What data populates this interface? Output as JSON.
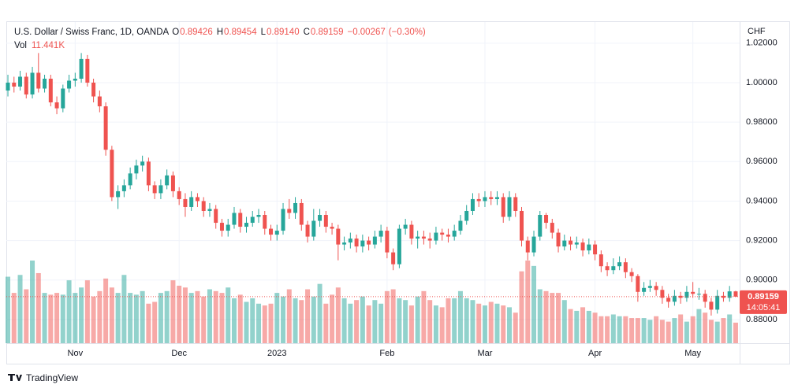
{
  "chart_data": {
    "type": "candlestick",
    "title": "U.S. Dollar / Swiss Franc, 1D, OANDA",
    "legend_letters": [
      "O",
      "H",
      "L",
      "C"
    ],
    "legend_values": [
      {
        "value": 0.89426,
        "label": "0.89426"
      },
      {
        "value": 0.89454,
        "label": "0.89454"
      },
      {
        "value": 0.8914,
        "label": "0.89140"
      },
      {
        "value": 0.89159,
        "label": "0.89159"
      }
    ],
    "change": {
      "value": -0.00267,
      "label": "−0.00267"
    },
    "change_pct": {
      "value": -0.3,
      "label": "(−0.30%)"
    },
    "volume_title": "Vol",
    "volume_last": {
      "value": 11441,
      "label": "11.441K"
    },
    "currency": "CHF",
    "countdown": "14:05:41",
    "footer": "TradingView",
    "up_color": "#26a69a",
    "down_color": "#ef5350",
    "grid": true,
    "xlim": [
      -0.26,
      119.65
    ],
    "xticks": [
      {
        "value": 11,
        "label": "Nov"
      },
      {
        "value": 28,
        "label": "Dec"
      },
      {
        "value": 44,
        "label": "2023"
      },
      {
        "value": 62,
        "label": "Feb"
      },
      {
        "value": 78,
        "label": "Mar"
      },
      {
        "value": 96,
        "label": "Apr"
      },
      {
        "value": 112,
        "label": "May"
      }
    ],
    "ylim": [
      0.868,
      1.0307
    ],
    "yticks": [
      {
        "value": 0.88,
        "label": "0.88000"
      },
      {
        "value": 0.9,
        "label": "0.90000"
      },
      {
        "value": 0.92,
        "label": "0.92000"
      },
      {
        "value": 0.94,
        "label": "0.94000"
      },
      {
        "value": 0.96,
        "label": "0.96000"
      },
      {
        "value": 0.98,
        "label": "0.98000"
      },
      {
        "value": 1.0,
        "label": "1.00000"
      },
      {
        "value": 1.02,
        "label": "1.02000"
      }
    ],
    "open": [
      0.996,
      1.0,
      0.998,
      1.003,
      0.994,
      1.005,
      0.997,
      1.002,
      0.99,
      0.987,
      0.997,
      1.001,
      1.002,
      1.012,
      1.0,
      0.993,
      0.988,
      0.966,
      0.942,
      0.945,
      0.948,
      0.954,
      0.958,
      0.96,
      0.948,
      0.944,
      0.948,
      0.953,
      0.945,
      0.941,
      0.937,
      0.942,
      0.94,
      0.935,
      0.936,
      0.929,
      0.925,
      0.928,
      0.934,
      0.927,
      0.929,
      0.932,
      0.933,
      0.926,
      0.923,
      0.925,
      0.936,
      0.934,
      0.939,
      0.928,
      0.922,
      0.93,
      0.933,
      0.927,
      0.926,
      0.918,
      0.919,
      0.921,
      0.917,
      0.92,
      0.918,
      0.922,
      0.925,
      0.914,
      0.908,
      0.926,
      0.928,
      0.921,
      0.922,
      0.921,
      0.92,
      0.924,
      0.923,
      0.922,
      0.925,
      0.93,
      0.935,
      0.941,
      0.94,
      0.942,
      0.941,
      0.942,
      0.932,
      0.942,
      0.935,
      0.92,
      0.914,
      0.922,
      0.933,
      0.929,
      0.924,
      0.917,
      0.92,
      0.918,
      0.919,
      0.915,
      0.918,
      0.913,
      0.907,
      0.905,
      0.907,
      0.909,
      0.904,
      0.902,
      0.894,
      0.896,
      0.897,
      0.895,
      0.891,
      0.889,
      0.892,
      0.891,
      0.894,
      0.893,
      0.893,
      0.889,
      0.885,
      0.892,
      0.891,
      0.89426
    ],
    "high": [
      1.004,
      1.003,
      1.006,
      1.005,
      1.008,
      1.015,
      1.004,
      1.004,
      0.993,
      0.999,
      1.004,
      1.005,
      1.015,
      1.014,
      1.002,
      0.996,
      0.99,
      0.968,
      0.948,
      0.951,
      0.957,
      0.961,
      0.963,
      0.962,
      0.95,
      0.951,
      0.956,
      0.955,
      0.947,
      0.944,
      0.945,
      0.944,
      0.942,
      0.939,
      0.938,
      0.931,
      0.931,
      0.937,
      0.936,
      0.932,
      0.935,
      0.936,
      0.935,
      0.928,
      0.928,
      0.939,
      0.941,
      0.942,
      0.941,
      0.93,
      0.936,
      0.936,
      0.935,
      0.929,
      0.928,
      0.922,
      0.924,
      0.923,
      0.923,
      0.922,
      0.925,
      0.928,
      0.927,
      0.916,
      0.928,
      0.931,
      0.93,
      0.925,
      0.925,
      0.924,
      0.927,
      0.926,
      0.926,
      0.928,
      0.933,
      0.938,
      0.944,
      0.944,
      0.945,
      0.945,
      0.945,
      0.944,
      0.945,
      0.944,
      0.937,
      0.922,
      0.925,
      0.935,
      0.934,
      0.931,
      0.926,
      0.923,
      0.922,
      0.922,
      0.921,
      0.921,
      0.92,
      0.915,
      0.909,
      0.911,
      0.912,
      0.911,
      0.906,
      0.903,
      0.899,
      0.9,
      0.899,
      0.897,
      0.893,
      0.895,
      0.894,
      0.897,
      0.899,
      0.896,
      0.895,
      0.891,
      0.895,
      0.894,
      0.897,
      0.89454
    ],
    "low": [
      0.993,
      0.995,
      0.996,
      0.992,
      0.992,
      0.995,
      0.995,
      0.988,
      0.984,
      0.985,
      0.995,
      0.998,
      1.0,
      0.998,
      0.99,
      0.985,
      0.963,
      0.94,
      0.936,
      0.942,
      0.946,
      0.951,
      0.955,
      0.945,
      0.941,
      0.941,
      0.946,
      0.942,
      0.938,
      0.932,
      0.935,
      0.937,
      0.932,
      0.932,
      0.926,
      0.922,
      0.922,
      0.926,
      0.924,
      0.924,
      0.927,
      0.929,
      0.923,
      0.92,
      0.92,
      0.923,
      0.931,
      0.931,
      0.925,
      0.919,
      0.92,
      0.927,
      0.924,
      0.923,
      0.91,
      0.915,
      0.916,
      0.914,
      0.914,
      0.915,
      0.916,
      0.919,
      0.911,
      0.905,
      0.906,
      0.923,
      0.918,
      0.916,
      0.918,
      0.916,
      0.918,
      0.92,
      0.919,
      0.92,
      0.923,
      0.928,
      0.933,
      0.937,
      0.937,
      0.938,
      0.938,
      0.929,
      0.93,
      0.932,
      0.917,
      0.91,
      0.912,
      0.92,
      0.926,
      0.921,
      0.914,
      0.915,
      0.915,
      0.916,
      0.912,
      0.913,
      0.91,
      0.904,
      0.902,
      0.903,
      0.905,
      0.901,
      0.899,
      0.889,
      0.892,
      0.894,
      0.892,
      0.888,
      0.886,
      0.887,
      0.888,
      0.889,
      0.891,
      0.89,
      0.886,
      0.882,
      0.883,
      0.889,
      0.889,
      0.8914
    ],
    "close": [
      1.0,
      0.998,
      1.003,
      0.994,
      1.005,
      0.997,
      1.002,
      0.99,
      0.987,
      0.997,
      1.001,
      1.002,
      1.012,
      1.0,
      0.993,
      0.988,
      0.966,
      0.942,
      0.945,
      0.948,
      0.954,
      0.958,
      0.96,
      0.948,
      0.944,
      0.948,
      0.953,
      0.945,
      0.941,
      0.937,
      0.942,
      0.94,
      0.935,
      0.936,
      0.929,
      0.925,
      0.928,
      0.934,
      0.927,
      0.929,
      0.932,
      0.933,
      0.926,
      0.923,
      0.925,
      0.936,
      0.934,
      0.939,
      0.928,
      0.922,
      0.93,
      0.933,
      0.927,
      0.926,
      0.918,
      0.919,
      0.921,
      0.917,
      0.92,
      0.918,
      0.922,
      0.925,
      0.914,
      0.908,
      0.926,
      0.928,
      0.921,
      0.922,
      0.921,
      0.92,
      0.924,
      0.923,
      0.922,
      0.925,
      0.93,
      0.935,
      0.941,
      0.94,
      0.942,
      0.941,
      0.942,
      0.932,
      0.942,
      0.935,
      0.92,
      0.914,
      0.922,
      0.933,
      0.929,
      0.924,
      0.917,
      0.92,
      0.918,
      0.919,
      0.915,
      0.918,
      0.913,
      0.907,
      0.905,
      0.907,
      0.909,
      0.904,
      0.902,
      0.894,
      0.896,
      0.897,
      0.895,
      0.891,
      0.889,
      0.892,
      0.891,
      0.894,
      0.893,
      0.893,
      0.889,
      0.885,
      0.892,
      0.891,
      0.89426,
      0.89159
    ],
    "volume": [
      37000,
      28000,
      38000,
      30000,
      46000,
      39000,
      28000,
      27000,
      28000,
      27000,
      35000,
      28000,
      31000,
      35000,
      26000,
      29000,
      36000,
      31000,
      28000,
      38000,
      28000,
      27000,
      29000,
      22000,
      23000,
      28000,
      29000,
      35000,
      32000,
      31000,
      28000,
      29000,
      26000,
      30000,
      29000,
      28000,
      31000,
      25000,
      27000,
      23000,
      25000,
      22000,
      21000,
      22000,
      28000,
      26000,
      30000,
      25000,
      24000,
      30000,
      26000,
      33000,
      22000,
      27000,
      31000,
      25000,
      22000,
      24000,
      26000,
      21000,
      24000,
      22000,
      29000,
      30000,
      25000,
      24000,
      21000,
      26000,
      29000,
      24000,
      21000,
      20000,
      25000,
      25000,
      29000,
      25000,
      24000,
      22000,
      21000,
      23000,
      22000,
      21000,
      20000,
      17000,
      40000,
      46000,
      43000,
      30000,
      29000,
      28000,
      28000,
      24000,
      19000,
      18000,
      20000,
      18000,
      17000,
      15000,
      15000,
      16000,
      15000,
      15000,
      14000,
      14000,
      14000,
      13000,
      15000,
      13000,
      12000,
      14000,
      16000,
      12000,
      15000,
      19000,
      17000,
      13000,
      12000,
      14000,
      16000,
      11441
    ]
  }
}
